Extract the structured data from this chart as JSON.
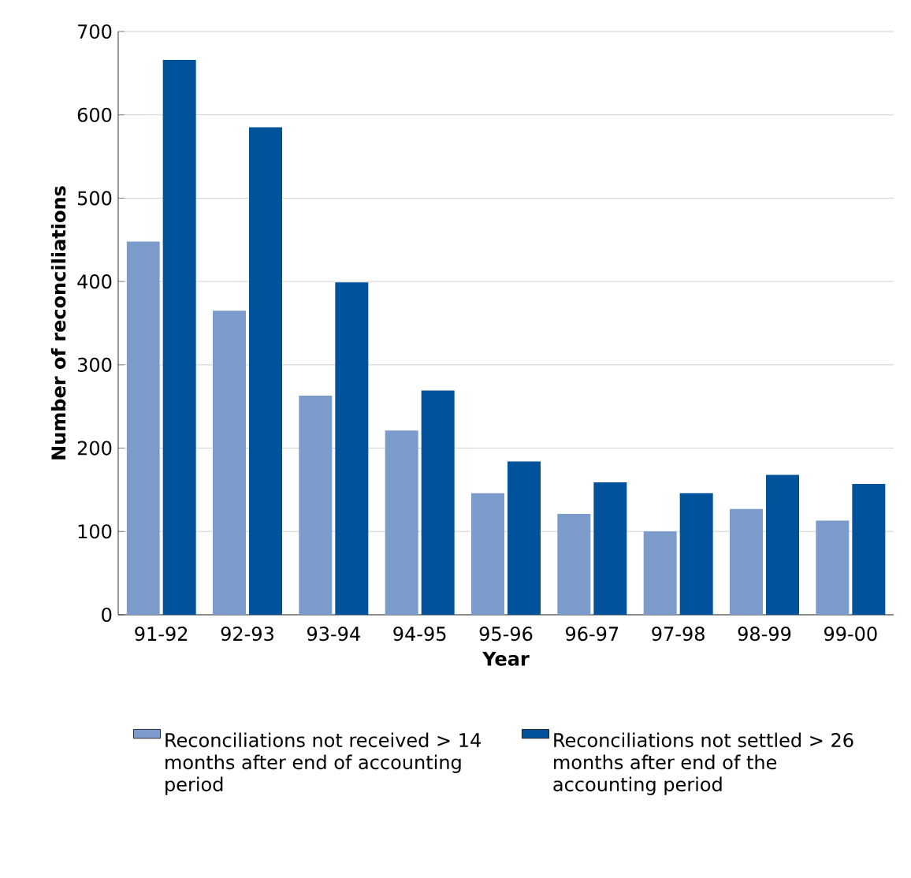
{
  "chart_data": {
    "type": "bar",
    "xlabel": "Year",
    "ylabel": "Number of reconciliations",
    "categories": [
      "91-92",
      "92-93",
      "93-94",
      "94-95",
      "95-96",
      "96-97",
      "97-98",
      "98-99",
      "99-00"
    ],
    "series": [
      {
        "name": "Reconciliations not received > 14 months after end of accounting period",
        "color": "#7b9bcb",
        "values": [
          448,
          365,
          263,
          221,
          146,
          121,
          100,
          127,
          113
        ]
      },
      {
        "name": "Reconciliations not settled > 26 months after end of the accounting period",
        "color": "#00539b",
        "values": [
          666,
          585,
          399,
          269,
          184,
          159,
          146,
          168,
          157
        ]
      }
    ],
    "ylim": [
      0,
      700
    ],
    "yticks": [
      0,
      100,
      200,
      300,
      400,
      500,
      600,
      700
    ],
    "grid": "y",
    "legend": "bottom"
  }
}
